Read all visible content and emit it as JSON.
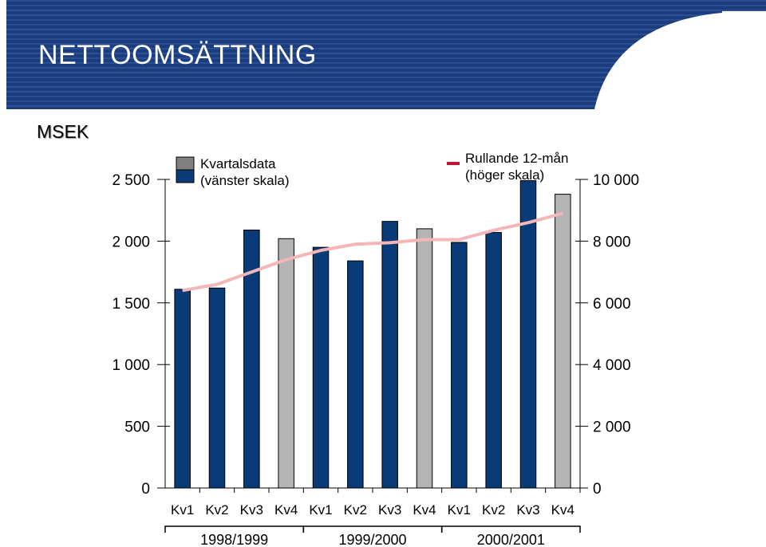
{
  "header": {
    "title": "NETTOOMSÄTTNING",
    "unit": "MSEK"
  },
  "colors": {
    "banner": "#1b3d7d",
    "bar_primary": "#083b78",
    "bar_accent": "#b4b4b4",
    "legend_gray": "#808080",
    "line": "#f4b6b6",
    "legend_line": "#c8102e"
  },
  "chart_data": {
    "type": "bar",
    "title": "NETTOOMSÄTTNING",
    "categories": [
      "Kv1",
      "Kv2",
      "Kv3",
      "Kv4",
      "Kv1",
      "Kv2",
      "Kv3",
      "Kv4",
      "Kv1",
      "Kv2",
      "Kv3",
      "Kv4"
    ],
    "groups": [
      {
        "label": "1998/1999",
        "span": [
          0,
          3
        ]
      },
      {
        "label": "1999/2000",
        "span": [
          4,
          7
        ]
      },
      {
        "label": "2000/2001",
        "span": [
          8,
          11
        ]
      }
    ],
    "series": [
      {
        "name": "Kvartalsdata (vänster skala)",
        "axis": "left",
        "values": [
          1610,
          1620,
          2090,
          2020,
          1950,
          1840,
          2160,
          2100,
          1990,
          2070,
          2490,
          2380
        ],
        "highlight": [
          false,
          false,
          false,
          true,
          false,
          false,
          false,
          true,
          false,
          false,
          false,
          true
        ]
      },
      {
        "name": "Rullande 12-mån (höger skala)",
        "axis": "right",
        "type": "line",
        "values": [
          6400,
          6600,
          7000,
          7400,
          7700,
          7900,
          7950,
          8050,
          8050,
          8350,
          8600,
          8900
        ]
      }
    ],
    "y_left": {
      "ylim": [
        0,
        2500
      ],
      "ticks": [
        0,
        500,
        1000,
        1500,
        2000,
        2500
      ],
      "tick_labels": [
        "0",
        "500",
        "1 000",
        "1 500",
        "2 000",
        "2 500"
      ]
    },
    "y_right": {
      "ylim": [
        0,
        10000
      ],
      "ticks": [
        0,
        2000,
        4000,
        6000,
        8000,
        10000
      ],
      "tick_labels": [
        "0",
        "2 000",
        "4 000",
        "6 000",
        "8 000",
        "10 000"
      ]
    },
    "legend": [
      {
        "label_lines": [
          "Kvartalsdata",
          "(vänster skala)"
        ],
        "placement": "top-left"
      },
      {
        "label_lines": [
          "Rullande 12-mån",
          "(höger skala)"
        ],
        "placement": "top-center"
      }
    ],
    "grid": false
  }
}
